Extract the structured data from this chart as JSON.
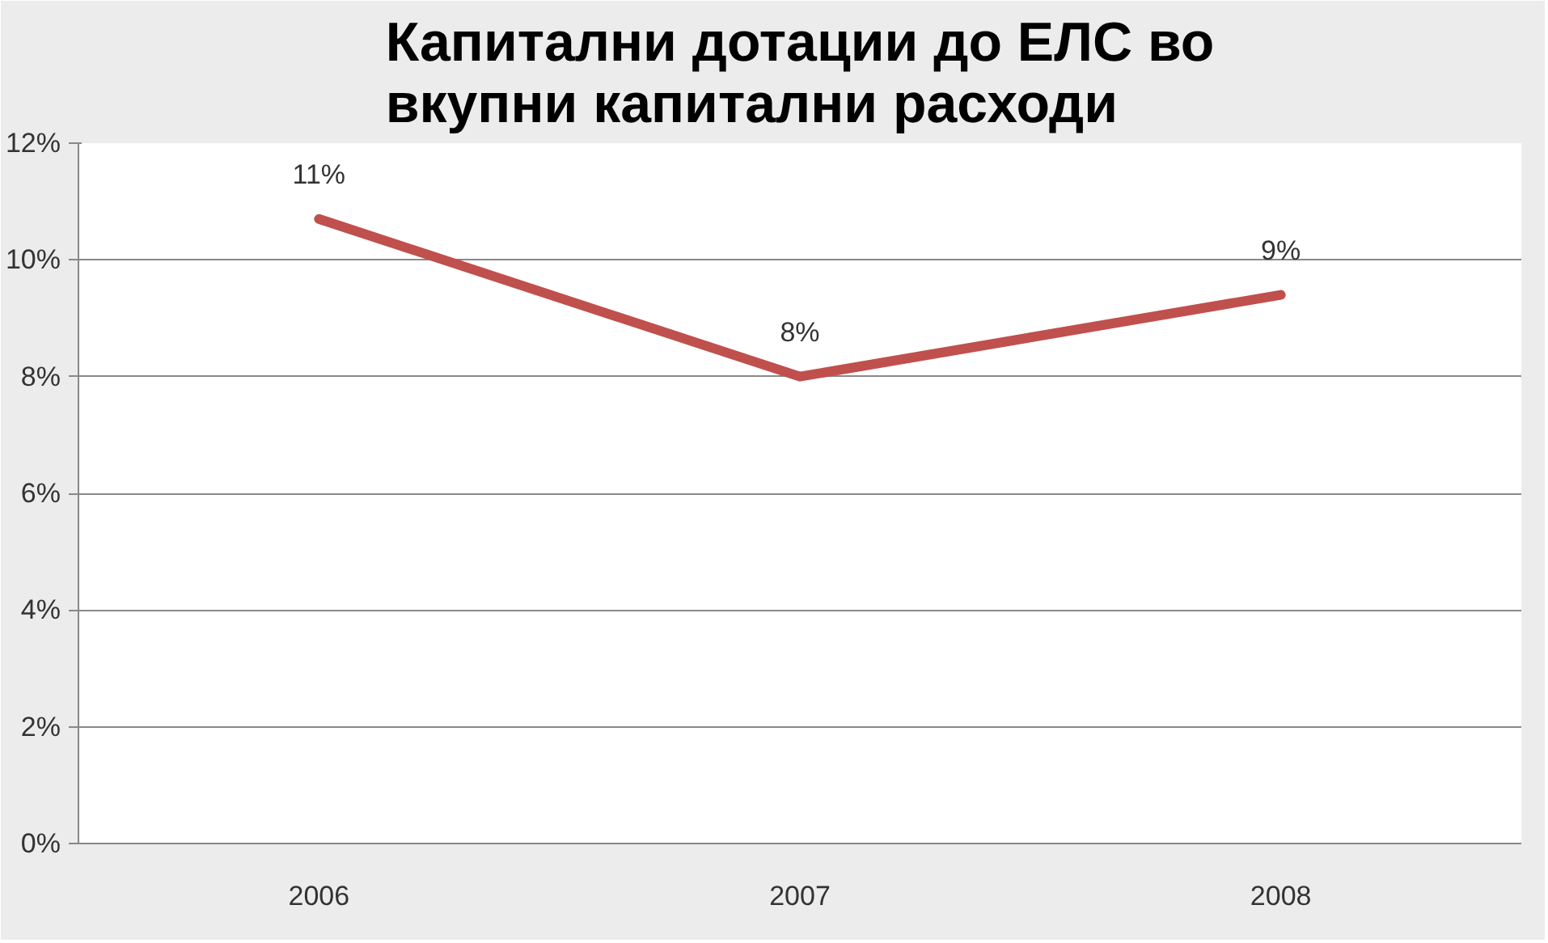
{
  "chart_data": {
    "type": "line",
    "title": "Капитални дотации до ЕЛС во вкупни капитални расходи",
    "categories": [
      "2006",
      "2007",
      "2008"
    ],
    "series": [
      {
        "color": "#c0504d",
        "values": [
          10.7,
          8.0,
          9.4
        ],
        "value_labels": [
          "11%",
          "8%",
          "9%"
        ]
      }
    ],
    "ylim": [
      0,
      12
    ],
    "yticks": [
      {
        "value": 0,
        "label": "0%"
      },
      {
        "value": 2,
        "label": "2%"
      },
      {
        "value": 4,
        "label": "4%"
      },
      {
        "value": 6,
        "label": "6%"
      },
      {
        "value": 8,
        "label": "8%"
      },
      {
        "value": 10,
        "label": "10%"
      },
      {
        "value": 12,
        "label": "12%"
      }
    ],
    "grid": "y",
    "marker": "none",
    "line_style": "solid"
  }
}
